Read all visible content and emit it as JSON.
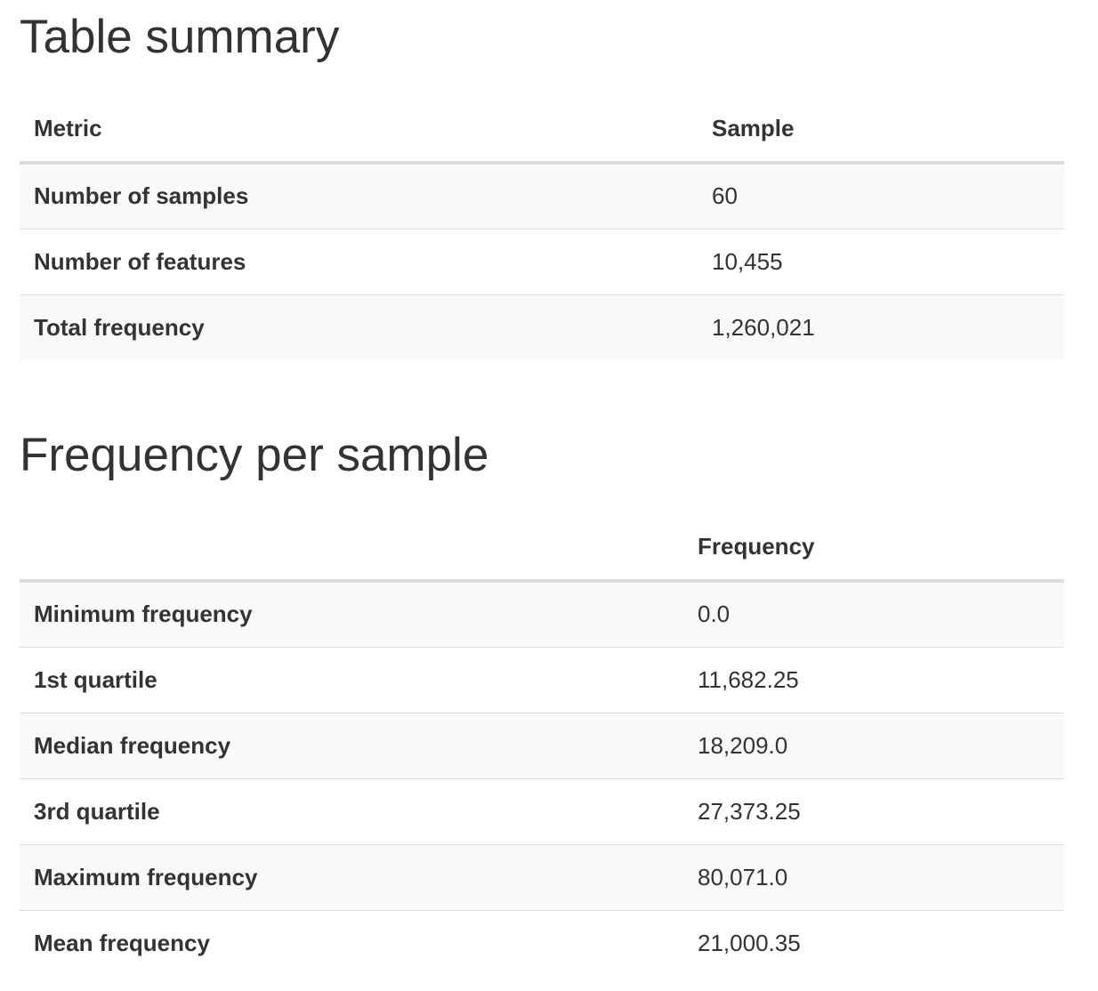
{
  "summary": {
    "title": "Table summary",
    "headers": [
      "Metric",
      "Sample"
    ],
    "rows": [
      {
        "label": "Number of samples",
        "value": "60"
      },
      {
        "label": "Number of features",
        "value": "10,455"
      },
      {
        "label": "Total frequency",
        "value": "1,260,021"
      }
    ]
  },
  "frequency": {
    "title": "Frequency per sample",
    "headers": [
      "",
      "Frequency"
    ],
    "rows": [
      {
        "label": "Minimum frequency",
        "value": "0.0"
      },
      {
        "label": "1st quartile",
        "value": "11,682.25"
      },
      {
        "label": "Median frequency",
        "value": "18,209.0"
      },
      {
        "label": "3rd quartile",
        "value": "27,373.25"
      },
      {
        "label": "Maximum frequency",
        "value": "80,071.0"
      },
      {
        "label": "Mean frequency",
        "value": "21,000.35"
      }
    ]
  }
}
